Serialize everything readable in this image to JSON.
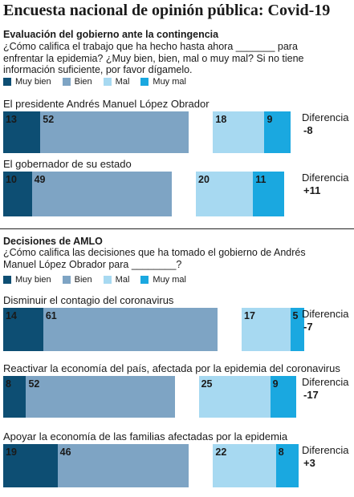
{
  "title": "Encuesta nacional de opinión pública: Covid-19",
  "colors": {
    "muy_bien": "#0d4e73",
    "bien": "#7ea4c4",
    "mal": "#a7d9f1",
    "muy_mal": "#1aa8e0"
  },
  "legend": [
    "Muy bien",
    "Bien",
    "Mal",
    "Muy mal"
  ],
  "diff_label": "Diferencia",
  "sections": [
    {
      "heading": "Evaluación del gobierno ante la contingencia",
      "question": "¿Cómo califica el trabajo que ha hecho hasta ahora _______ para enfrentar la epidemia? ¿Muy bien, bien, mal o muy mal? Si no tiene información suficiente, por favor dígamelo.",
      "items": [
        {
          "label": "El presidente Andrés Manuel López Obrador",
          "muy_bien": 13,
          "bien": 52,
          "mal": 18,
          "muy_mal": 9,
          "diferencia": "-8"
        },
        {
          "label": "El gobernador de su estado",
          "muy_bien": 10,
          "bien": 49,
          "mal": 20,
          "muy_mal": 11,
          "diferencia": "+11"
        }
      ]
    },
    {
      "heading": "Decisiones de AMLO",
      "question": "¿Cómo califica las decisiones que ha tomado el gobierno de Andrés Manuel López Obrador para ________?",
      "items": [
        {
          "label": "Disminuir el contagio del coronavirus",
          "muy_bien": 14,
          "bien": 61,
          "mal": 17,
          "muy_mal": 5,
          "diferencia": "-7"
        },
        {
          "label": "Reactivar la economía del país, afectada por la epidemia del coronavirus",
          "muy_bien": 8,
          "bien": 52,
          "mal": 25,
          "muy_mal": 9,
          "diferencia": "-17"
        },
        {
          "label": "Apoyar la economía de las familias afectadas por la epidemia",
          "muy_bien": 19,
          "bien": 46,
          "mal": 22,
          "muy_mal": 8,
          "diferencia": "+3"
        }
      ]
    }
  ],
  "chart_data": {
    "type": "bar",
    "subtype": "diverging-stacked-horizontal",
    "title": "Encuesta nacional de opinión pública: Covid-19",
    "series_names": [
      "Muy bien",
      "Bien",
      "Mal",
      "Muy mal"
    ],
    "groups": [
      {
        "heading": "Evaluación del gobierno ante la contingencia",
        "categories": [
          "El presidente Andrés Manuel López Obrador",
          "El gobernador de su estado"
        ],
        "series": [
          {
            "name": "Muy bien",
            "values": [
              13,
              10
            ]
          },
          {
            "name": "Bien",
            "values": [
              52,
              49
            ]
          },
          {
            "name": "Mal",
            "values": [
              18,
              20
            ]
          },
          {
            "name": "Muy mal",
            "values": [
              9,
              11
            ]
          }
        ],
        "diferencia": [
          "-8",
          "+11"
        ]
      },
      {
        "heading": "Decisiones de AMLO",
        "categories": [
          "Disminuir el contagio del coronavirus",
          "Reactivar la economía del país, afectada por la epidemia del coronavirus",
          "Apoyar la economía de las familias afectadas por la epidemia"
        ],
        "series": [
          {
            "name": "Muy bien",
            "values": [
              14,
              8,
              19
            ]
          },
          {
            "name": "Bien",
            "values": [
              61,
              52,
              46
            ]
          },
          {
            "name": "Mal",
            "values": [
              17,
              25,
              22
            ]
          },
          {
            "name": "Muy mal",
            "values": [
              5,
              9,
              8
            ]
          }
        ],
        "diferencia": [
          "-7",
          "-17",
          "+3"
        ]
      }
    ]
  }
}
